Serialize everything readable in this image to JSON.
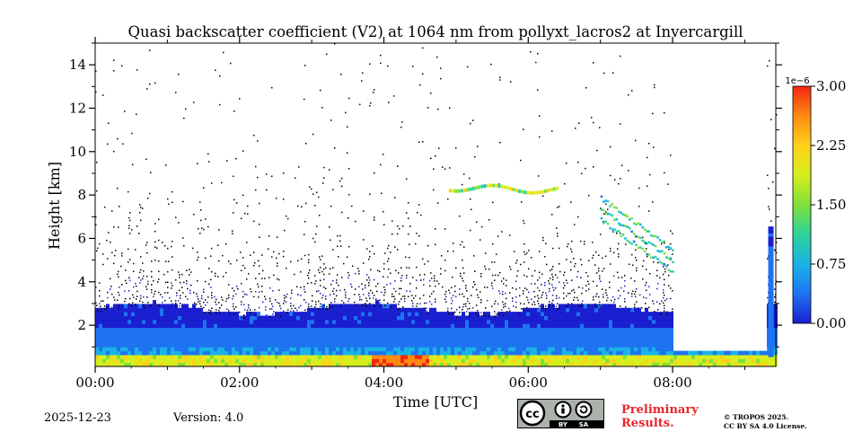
{
  "chart_data": {
    "type": "heatmap",
    "title": "Quasi backscatter coefficient (V2) at 1064 nm from pollyxt_lacros2 at Invercargill",
    "xlabel": "Time [UTC]",
    "ylabel": "Height [km]",
    "x_ticks": [
      "00:00",
      "02:00",
      "04:00",
      "06:00",
      "08:00"
    ],
    "x_tick_hours": [
      0,
      2,
      4,
      6,
      8
    ],
    "xlim_hours": [
      0,
      9.43
    ],
    "y_ticks": [
      "2",
      "4",
      "6",
      "8",
      "10",
      "12",
      "14"
    ],
    "y_tick_values": [
      2,
      4,
      6,
      8,
      10,
      12,
      14
    ],
    "ylim_km": [
      0.1,
      15
    ],
    "colorbar": {
      "exponent_label": "1e−6",
      "tick_labels": [
        "0.00",
        "0.75",
        "1.50",
        "2.25",
        "3.00"
      ],
      "tick_values": [
        0,
        0.75,
        1.5,
        2.25,
        3.0
      ],
      "range": [
        0,
        3.0
      ],
      "colors": [
        "#1a1fd0",
        "#1e74f0",
        "#19b3e6",
        "#2ed39a",
        "#7fe03a",
        "#d6ee1e",
        "#ffd21a",
        "#ff8a12",
        "#f0260f"
      ]
    },
    "features": {
      "boundary_layer_top_km": 2.6,
      "surface_layer_km": 0.5,
      "high_signal_period_hours": [
        3.8,
        4.6
      ],
      "cloud_layer_km": 8.3,
      "cloud_period_hours": [
        4.9,
        6.4
      ],
      "data_gap_hours": [
        8.0,
        9.3
      ]
    }
  },
  "footer": {
    "date": "2025-12-23",
    "version": "Version: 4.0",
    "prelim_line1": "Preliminary",
    "prelim_line2": "Results.",
    "copyright_line1": "© TROPOS 2025.",
    "copyright_line2": "CC BY SA 4.0 License.",
    "cc_text": "cc",
    "by_text": "BY",
    "sa_text": "SA"
  }
}
